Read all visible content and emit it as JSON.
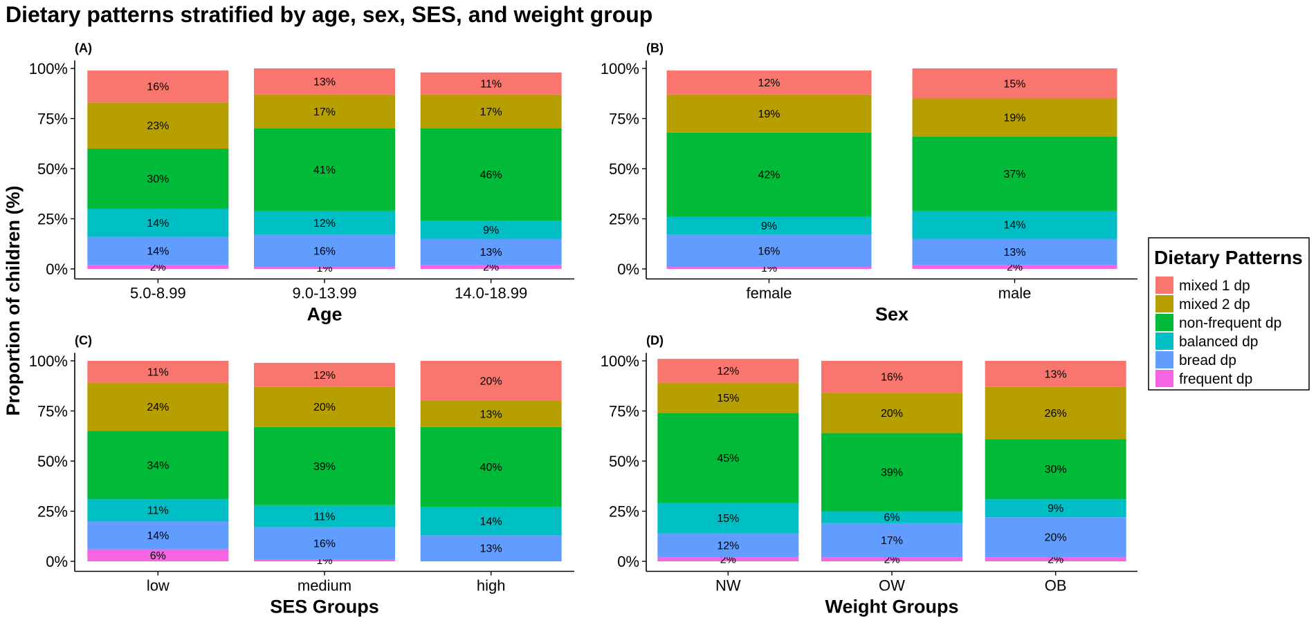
{
  "title": "Dietary patterns stratified by age, sex, SES, and weight group",
  "ylabel": "Proportion of children (%)",
  "y_ticks": [
    "0%",
    "25%",
    "50%",
    "75%",
    "100%"
  ],
  "legend": {
    "title": "Dietary Patterns",
    "entries": [
      {
        "name": "mixed 1 dp",
        "color": "#F8766D"
      },
      {
        "name": "mixed 2 dp",
        "color": "#B79F00"
      },
      {
        "name": "non-frequent dp",
        "color": "#00BA38"
      },
      {
        "name": "balanced dp",
        "color": "#00BFC4"
      },
      {
        "name": "bread dp",
        "color": "#619CFF"
      },
      {
        "name": "frequent dp",
        "color": "#F564E3"
      }
    ]
  },
  "chart_data": [
    {
      "type": "bar",
      "stacked": true,
      "panel": "(A)",
      "xlabel": "Age",
      "ylabel": "Proportion of children (%)",
      "ylim": [
        0,
        100
      ],
      "categories": [
        "5.0-8.99",
        "9.0-13.99",
        "14.0-18.99"
      ],
      "series": [
        {
          "name": "frequent dp",
          "values": [
            2,
            1,
            2
          ]
        },
        {
          "name": "bread dp",
          "values": [
            14,
            16,
            13
          ]
        },
        {
          "name": "balanced dp",
          "values": [
            14,
            12,
            9
          ]
        },
        {
          "name": "non-frequent dp",
          "values": [
            30,
            41,
            46
          ]
        },
        {
          "name": "mixed 2 dp",
          "values": [
            23,
            17,
            17
          ]
        },
        {
          "name": "mixed 1 dp",
          "values": [
            16,
            13,
            11
          ]
        }
      ]
    },
    {
      "type": "bar",
      "stacked": true,
      "panel": "(B)",
      "xlabel": "Sex",
      "ylabel": "Proportion of children (%)",
      "ylim": [
        0,
        100
      ],
      "categories": [
        "female",
        "male"
      ],
      "series": [
        {
          "name": "frequent dp",
          "values": [
            1,
            2
          ]
        },
        {
          "name": "bread dp",
          "values": [
            16,
            13
          ]
        },
        {
          "name": "balanced dp",
          "values": [
            9,
            14
          ]
        },
        {
          "name": "non-frequent dp",
          "values": [
            42,
            37
          ]
        },
        {
          "name": "mixed 2 dp",
          "values": [
            19,
            19
          ]
        },
        {
          "name": "mixed 1 dp",
          "values": [
            12,
            15
          ]
        }
      ]
    },
    {
      "type": "bar",
      "stacked": true,
      "panel": "(C)",
      "xlabel": "SES Groups",
      "ylabel": "Proportion of children (%)",
      "ylim": [
        0,
        100
      ],
      "categories": [
        "low",
        "medium",
        "high"
      ],
      "series": [
        {
          "name": "frequent dp",
          "values": [
            6,
            1,
            0
          ]
        },
        {
          "name": "bread dp",
          "values": [
            14,
            16,
            13
          ]
        },
        {
          "name": "balanced dp",
          "values": [
            11,
            11,
            14
          ]
        },
        {
          "name": "non-frequent dp",
          "values": [
            34,
            39,
            40
          ]
        },
        {
          "name": "mixed 2 dp",
          "values": [
            24,
            20,
            13
          ]
        },
        {
          "name": "mixed 1 dp",
          "values": [
            11,
            12,
            20
          ]
        }
      ]
    },
    {
      "type": "bar",
      "stacked": true,
      "panel": "(D)",
      "xlabel": "Weight Groups",
      "ylabel": "Proportion of children (%)",
      "ylim": [
        0,
        100
      ],
      "categories": [
        "NW",
        "OW",
        "OB"
      ],
      "series": [
        {
          "name": "frequent dp",
          "values": [
            2,
            2,
            2
          ]
        },
        {
          "name": "bread dp",
          "values": [
            12,
            17,
            20
          ]
        },
        {
          "name": "balanced dp",
          "values": [
            15,
            6,
            9
          ]
        },
        {
          "name": "non-frequent dp",
          "values": [
            45,
            39,
            30
          ]
        },
        {
          "name": "mixed 2 dp",
          "values": [
            15,
            20,
            26
          ]
        },
        {
          "name": "mixed 1 dp",
          "values": [
            12,
            16,
            13
          ]
        }
      ]
    }
  ]
}
